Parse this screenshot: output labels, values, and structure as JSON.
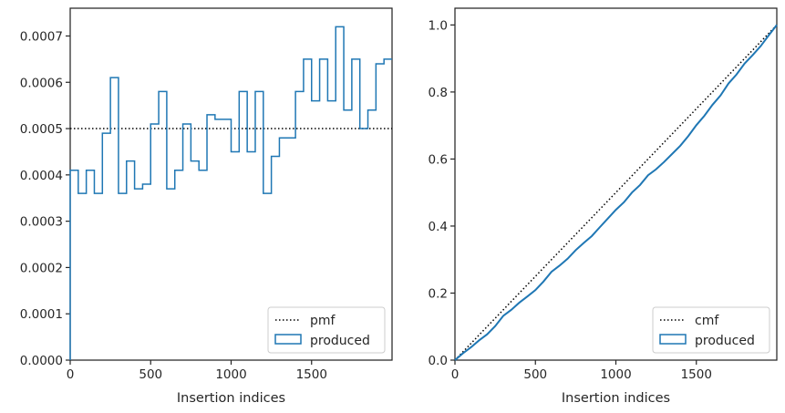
{
  "chart_data": [
    {
      "type": "histogram-step",
      "title": "",
      "xlabel": "Insertion indices",
      "ylabel": "",
      "xlim": [
        0,
        2000
      ],
      "ylim": [
        0,
        0.00076
      ],
      "xticks": [
        0,
        500,
        1000,
        1500
      ],
      "xtick_labels": [
        "0",
        "500",
        "1000",
        "1500"
      ],
      "yticks": [
        0,
        0.0001,
        0.0002,
        0.0003,
        0.0004,
        0.0005,
        0.0006,
        0.0007
      ],
      "ytick_labels": [
        "0.0000",
        "0.0001",
        "0.0002",
        "0.0003",
        "0.0004",
        "0.0005",
        "0.0006",
        "0.0007"
      ],
      "bin_edges": [
        0,
        50,
        100,
        150,
        200,
        250,
        300,
        350,
        400,
        450,
        500,
        550,
        600,
        650,
        700,
        750,
        800,
        850,
        900,
        950,
        1000,
        1050,
        1100,
        1150,
        1200,
        1250,
        1300,
        1350,
        1400,
        1450,
        1500,
        1550,
        1600,
        1650,
        1700,
        1750,
        1800,
        1850,
        1900,
        1950,
        2000
      ],
      "series": [
        {
          "name": "pmf",
          "style": "dotted",
          "color": "#000000",
          "values": [
            0.0005
          ]
        },
        {
          "name": "produced",
          "style": "step",
          "color": "#1f77b4",
          "values": [
            0.00041,
            0.00036,
            0.00041,
            0.00036,
            0.00049,
            0.00061,
            0.00036,
            0.00043,
            0.00037,
            0.00038,
            0.00051,
            0.00058,
            0.00037,
            0.00041,
            0.00051,
            0.00043,
            0.00041,
            0.00053,
            0.00052,
            0.00052,
            0.00045,
            0.00058,
            0.00045,
            0.00058,
            0.00036,
            0.00044,
            0.00048,
            0.00048,
            0.00058,
            0.00065,
            0.00056,
            0.00065,
            0.00056,
            0.00072,
            0.00054,
            0.00065,
            0.0005,
            0.00054,
            0.00064,
            0.00065
          ]
        }
      ],
      "legend": {
        "position": "bottom-right",
        "entries": [
          "pmf",
          "produced"
        ]
      },
      "grid": false
    },
    {
      "type": "line",
      "title": "",
      "xlabel": "Insertion indices",
      "ylabel": "",
      "xlim": [
        0,
        2000
      ],
      "ylim": [
        0,
        1.05
      ],
      "xticks": [
        0,
        500,
        1000,
        1500
      ],
      "xtick_labels": [
        "0",
        "500",
        "1000",
        "1500"
      ],
      "yticks": [
        0,
        0.2,
        0.4,
        0.6,
        0.8,
        1.0
      ],
      "ytick_labels": [
        "0.0",
        "0.2",
        "0.4",
        "0.6",
        "0.8",
        "1.0"
      ],
      "series": [
        {
          "name": "cmf",
          "style": "dotted",
          "color": "#000000",
          "x": [
            0,
            2000
          ],
          "y": [
            0,
            1.0
          ]
        },
        {
          "name": "produced",
          "style": "line",
          "color": "#1f77b4",
          "x": [
            0,
            50,
            100,
            150,
            200,
            250,
            300,
            350,
            400,
            450,
            500,
            550,
            600,
            650,
            700,
            750,
            800,
            850,
            900,
            950,
            1000,
            1050,
            1100,
            1150,
            1200,
            1250,
            1300,
            1350,
            1400,
            1450,
            1500,
            1550,
            1600,
            1650,
            1700,
            1750,
            1800,
            1850,
            1900,
            1950,
            2000
          ],
          "y": [
            0,
            0.0205,
            0.0385,
            0.059,
            0.077,
            0.1015,
            0.132,
            0.15,
            0.1715,
            0.19,
            0.209,
            0.2345,
            0.2635,
            0.282,
            0.3025,
            0.328,
            0.3495,
            0.37,
            0.3965,
            0.4225,
            0.4485,
            0.471,
            0.5,
            0.5225,
            0.5515,
            0.5695,
            0.5915,
            0.6155,
            0.6395,
            0.6685,
            0.701,
            0.729,
            0.7615,
            0.7895,
            0.8255,
            0.8525,
            0.885,
            0.91,
            0.937,
            0.969,
            1.0
          ]
        }
      ],
      "legend": {
        "position": "bottom-right",
        "entries": [
          "cmf",
          "produced"
        ]
      },
      "grid": false
    }
  ]
}
